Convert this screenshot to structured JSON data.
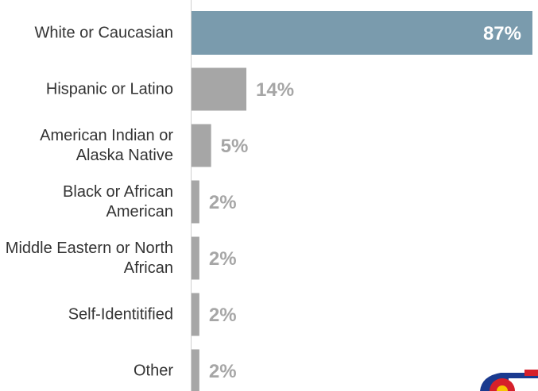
{
  "chart_data": {
    "type": "bar",
    "orientation": "horizontal",
    "categories": [
      "White or Caucasian",
      "Hispanic or Latino",
      "American Indian or Alaska Native",
      "Black or African American",
      "Middle Eastern or North African",
      "Self-Identitified",
      "Other"
    ],
    "values": [
      87,
      14,
      5,
      2,
      2,
      2,
      2
    ],
    "value_labels": [
      "87%",
      "14%",
      "5%",
      "2%",
      "2%",
      "2%",
      "2%"
    ],
    "colors": [
      "#7a9bad",
      "#a6a6a6",
      "#a6a6a6",
      "#a6a6a6",
      "#a6a6a6",
      "#a6a6a6",
      "#a6a6a6"
    ]
  }
}
